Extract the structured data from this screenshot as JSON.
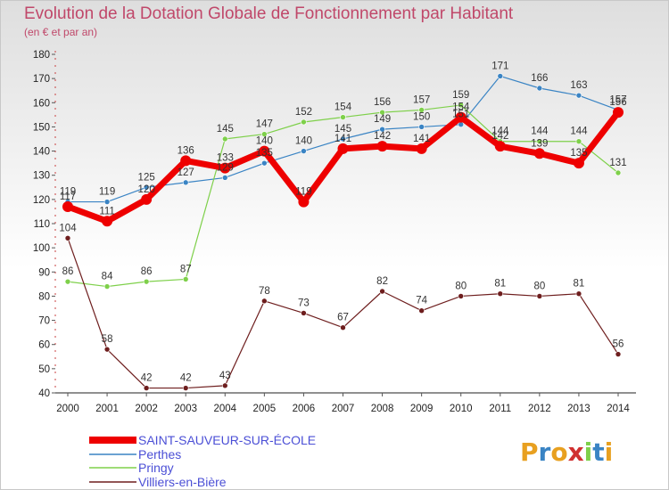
{
  "chart_data": {
    "type": "line",
    "title": "Evolution de la Dotation Globale de Fonctionnement par Habitant",
    "subtitle": "(en € et par an)",
    "xlabel": "",
    "ylabel": "",
    "x": [
      "2000",
      "2001",
      "2002",
      "2003",
      "2004",
      "2005",
      "2006",
      "2007",
      "2008",
      "2009",
      "2010",
      "2011",
      "2012",
      "2013",
      "2014"
    ],
    "ylim": [
      40,
      180
    ],
    "yticks": [
      "40",
      "50",
      "60",
      "70",
      "80",
      "90",
      "100",
      "110",
      "120",
      "130",
      "140",
      "150",
      "160",
      "170",
      "180"
    ],
    "grid": false,
    "legend_position": "bottom-left",
    "series": [
      {
        "name": "SAINT-SAUVEUR-SUR-ÉCOLE",
        "color": "#ee0000",
        "values": [
          117,
          111,
          120,
          136,
          133,
          140,
          119,
          141,
          142,
          141,
          154,
          142,
          139,
          135,
          156
        ]
      },
      {
        "name": "Perthes",
        "color": "#3a84c4",
        "values": [
          119,
          119,
          125,
          127,
          129,
          135,
          140,
          145,
          149,
          150,
          151,
          171,
          166,
          163,
          157
        ]
      },
      {
        "name": "Pringy",
        "color": "#7ed04a",
        "values": [
          86,
          84,
          86,
          87,
          145,
          147,
          152,
          154,
          156,
          157,
          159,
          144,
          144,
          144,
          131
        ]
      },
      {
        "name": "Villiers-en-Bière",
        "color": "#6e1e1e",
        "values": [
          104,
          58,
          42,
          42,
          43,
          78,
          73,
          67,
          82,
          74,
          80,
          81,
          80,
          81,
          56
        ]
      }
    ]
  },
  "logo": {
    "text": "Proxiti",
    "letters": [
      "P",
      "r",
      "o",
      "x",
      "i",
      "t",
      "i"
    ],
    "colors": [
      "#e8a020",
      "#3a84c4",
      "#e8a020",
      "#d03030",
      "#7ed04a",
      "#3a84c4",
      "#e8a020"
    ]
  }
}
